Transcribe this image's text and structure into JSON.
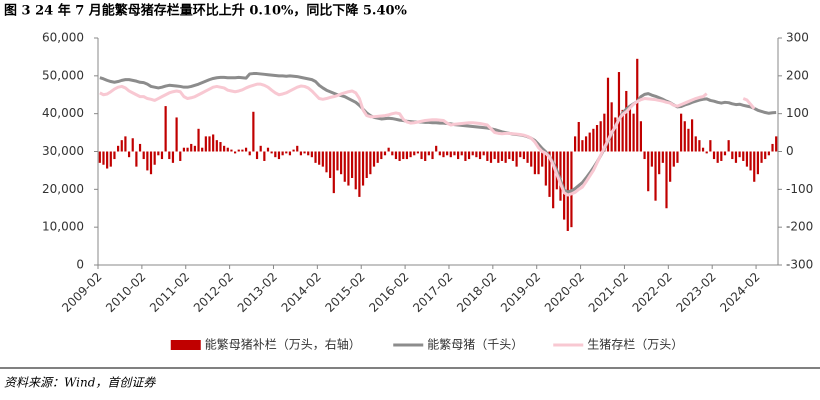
{
  "chart_data": {
    "type": "bar",
    "title": "图 3  24 年 7 月能繁母猪存栏量环比上升 0.10%，同比下降 5.40%",
    "source": "资料来源：Wind，首创证券",
    "legend": "bottom",
    "categories": [
      "2009-02",
      null,
      null,
      null,
      null,
      null,
      null,
      null,
      null,
      null,
      null,
      null,
      "2010-02",
      null,
      null,
      null,
      null,
      null,
      null,
      null,
      null,
      null,
      null,
      null,
      "2011-02",
      null,
      null,
      null,
      null,
      null,
      null,
      null,
      null,
      null,
      null,
      null,
      "2012-02",
      null,
      null,
      null,
      null,
      null,
      null,
      null,
      null,
      null,
      null,
      null,
      "2013-02",
      null,
      null,
      null,
      null,
      null,
      null,
      null,
      null,
      null,
      null,
      null,
      "2014-02",
      null,
      null,
      null,
      null,
      null,
      null,
      null,
      null,
      null,
      null,
      null,
      "2015-02",
      null,
      null,
      null,
      null,
      null,
      null,
      null,
      null,
      null,
      null,
      null,
      "2016-02",
      null,
      null,
      null,
      null,
      null,
      null,
      null,
      null,
      null,
      null,
      null,
      "2017-02",
      null,
      null,
      null,
      null,
      null,
      null,
      null,
      null,
      null,
      null,
      null,
      "2018-02",
      null,
      null,
      null,
      null,
      null,
      null,
      null,
      null,
      null,
      null,
      null,
      "2019-02",
      null,
      null,
      null,
      null,
      null,
      null,
      null,
      null,
      null,
      null,
      null,
      "2020-02",
      null,
      null,
      null,
      null,
      null,
      null,
      null,
      null,
      null,
      null,
      null,
      "2021-02",
      null,
      null,
      null,
      null,
      null,
      null,
      null,
      null,
      null,
      null,
      null,
      "2022-02",
      null,
      null,
      null,
      null,
      null,
      null,
      null,
      null,
      null,
      null,
      null,
      "2023-02",
      null,
      null,
      null,
      null,
      null,
      null,
      null,
      null,
      null,
      null,
      null,
      "2024-02",
      null,
      null,
      null,
      null,
      null
    ],
    "ylim": [
      0,
      60000
    ],
    "yticks": [
      0,
      {
        "value": 10000,
        "label": "10,000"
      },
      {
        "value": 20000,
        "label": "20,000"
      },
      {
        "value": 30000,
        "label": "30,000"
      },
      {
        "value": 40000,
        "label": "40,000"
      },
      {
        "value": 50000,
        "label": "50,000"
      },
      {
        "value": 60000,
        "label": "60,000"
      }
    ],
    "y2lim": [
      -300,
      300
    ],
    "y2ticks": [
      -300,
      -200,
      -100,
      0,
      100,
      200,
      300
    ],
    "series": [
      {
        "name": "能繁母猪补栏（万头，右轴）",
        "type": "bar",
        "axis": "y2",
        "color": "#c00000",
        "values": [
          -30,
          -35,
          -45,
          -40,
          -20,
          15,
          30,
          40,
          -15,
          35,
          -40,
          20,
          -20,
          -50,
          -60,
          -35,
          -10,
          -20,
          120,
          -20,
          -30,
          90,
          -25,
          10,
          10,
          20,
          15,
          60,
          10,
          40,
          40,
          45,
          30,
          25,
          15,
          10,
          5,
          -5,
          5,
          5,
          10,
          -10,
          105,
          -20,
          15,
          -25,
          10,
          -5,
          -15,
          -20,
          -10,
          -5,
          -10,
          5,
          15,
          -10,
          -5,
          -10,
          -15,
          -30,
          -35,
          -40,
          -55,
          -70,
          -110,
          -50,
          -60,
          -80,
          -90,
          -70,
          -100,
          -120,
          -90,
          -70,
          -60,
          -40,
          -30,
          -20,
          -10,
          10,
          -10,
          -20,
          -25,
          -20,
          -20,
          -15,
          -10,
          -5,
          -20,
          -25,
          -10,
          -20,
          15,
          -10,
          -15,
          -10,
          -15,
          -10,
          -20,
          -10,
          -25,
          -20,
          -10,
          -15,
          -20,
          -10,
          -25,
          -30,
          -20,
          -30,
          -25,
          -30,
          -20,
          -25,
          -40,
          -15,
          -20,
          -30,
          -40,
          -60,
          -60,
          -40,
          -90,
          -120,
          -150,
          -100,
          -130,
          -180,
          -210,
          -200,
          40,
          78,
          30,
          40,
          50,
          60,
          70,
          80,
          100,
          195,
          130,
          90,
          210,
          110,
          160,
          120,
          100,
          245,
          80,
          -20,
          -105,
          -40,
          -130,
          -60,
          -30,
          -150,
          -80,
          -40,
          -30,
          100,
          80,
          60,
          85,
          40,
          30,
          10,
          -5,
          30,
          -20,
          -30,
          -25,
          -10,
          30,
          -20,
          -30,
          -15,
          -25,
          -40,
          -50,
          -80,
          -60,
          -30,
          -20,
          -10,
          20,
          40
        ]
      },
      {
        "name": "能繁母猪（千头）",
        "type": "line",
        "axis": "y",
        "color": "#8c8c8c",
        "values": [
          49500,
          49200,
          48800,
          48500,
          48300,
          48500,
          48800,
          49000,
          49000,
          48800,
          48600,
          48300,
          48200,
          47800,
          47200,
          47000,
          46800,
          47000,
          47300,
          47500,
          47400,
          47300,
          47200,
          47000,
          47000,
          47200,
          47500,
          47800,
          48200,
          48600,
          49000,
          49300,
          49500,
          49600,
          49600,
          49500,
          49500,
          49500,
          49600,
          49500,
          49400,
          50500,
          50600,
          50600,
          50500,
          50400,
          50300,
          50200,
          50100,
          50000,
          50000,
          49900,
          50000,
          49900,
          49800,
          49600,
          49400,
          49200,
          49000,
          48500,
          47500,
          46800,
          46200,
          45800,
          45400,
          45000,
          44800,
          44500,
          44000,
          43500,
          43000,
          42200,
          41200,
          40200,
          39500,
          39000,
          38800,
          38600,
          38700,
          38800,
          38700,
          38500,
          38300,
          38200,
          38000,
          37900,
          37800,
          37800,
          37800,
          37700,
          37700,
          37600,
          37600,
          37500,
          37500,
          37400,
          37300,
          37100,
          37000,
          36900,
          36800,
          36700,
          36600,
          36500,
          36400,
          36300,
          36200,
          36000,
          35800,
          35500,
          35200,
          35000,
          34800,
          34600,
          34500,
          34400,
          34200,
          33900,
          33500,
          32900,
          31900,
          30800,
          29900,
          28700,
          27000,
          25000,
          22400,
          19800,
          19300,
          19600,
          20200,
          21000,
          21800,
          23000,
          24300,
          25700,
          27200,
          28900,
          30700,
          32700,
          34700,
          36600,
          38500,
          40200,
          41200,
          42000,
          42600,
          43200,
          44500,
          45100,
          45300,
          44900,
          44600,
          44200,
          43800,
          43300,
          42900,
          42300,
          41800,
          41900,
          42300,
          42600,
          43000,
          43300,
          43600,
          43800,
          43900,
          43500,
          43300,
          43000,
          42800,
          43000,
          42900,
          42600,
          42400,
          42500,
          42200,
          42000,
          41800,
          41400,
          40900,
          40600,
          40300,
          40100,
          40250,
          40300
        ]
      },
      {
        "name": "生猪存栏（万头）",
        "type": "line",
        "axis": "y",
        "color": "#f8c8d2",
        "values": [
          45500,
          45000,
          45200,
          45800,
          46500,
          47000,
          47200,
          46800,
          46000,
          45500,
          45000,
          44500,
          44500,
          44000,
          43800,
          43500,
          44000,
          44500,
          45000,
          45500,
          45800,
          46000,
          45800,
          44500,
          44000,
          44200,
          44500,
          45000,
          45500,
          46000,
          46500,
          47000,
          47200,
          47000,
          46800,
          46200,
          46000,
          45800,
          46000,
          46300,
          46800,
          47200,
          47500,
          47800,
          47800,
          47500,
          47000,
          46200,
          45500,
          45000,
          45200,
          45500,
          46000,
          46500,
          47000,
          47300,
          47200,
          46800,
          46000,
          45000,
          44000,
          43800,
          44000,
          44300,
          44500,
          44800,
          45200,
          45500,
          45800,
          46000,
          45500,
          44000,
          41000,
          39500,
          39200,
          39200,
          39300,
          39400,
          39500,
          39700,
          40000,
          40200,
          40000,
          38500,
          37800,
          37500,
          37600,
          37800,
          38000,
          38200,
          38300,
          38400,
          38400,
          38300,
          38200,
          37500,
          37000,
          37200,
          37300,
          37400,
          37500,
          37600,
          37600,
          37500,
          37400,
          37200,
          37000,
          36000,
          35000,
          34800,
          34700,
          34800,
          34800,
          34700,
          34600,
          34500,
          34300,
          34000,
          33500,
          32500,
          31000,
          30000,
          29500,
          28500,
          26500,
          24000,
          21500,
          19100,
          18500,
          18800,
          19200,
          20000,
          20600,
          22000,
          23500,
          25000,
          27000,
          29000,
          31000,
          33000,
          35000,
          36500,
          38500,
          39800,
          40500,
          41500,
          42500,
          43200,
          43700,
          44000,
          43900,
          43800,
          43700,
          43500,
          43300,
          43000,
          42800,
          42200,
          42000,
          42400,
          42800,
          43200,
          43600,
          44000,
          44300,
          44500,
          45300,
          null,
          null,
          null,
          null,
          null,
          null,
          null,
          null,
          null,
          44000,
          43600,
          42500,
          41300,
          null,
          null,
          null,
          null,
          null,
          null
        ]
      }
    ]
  }
}
